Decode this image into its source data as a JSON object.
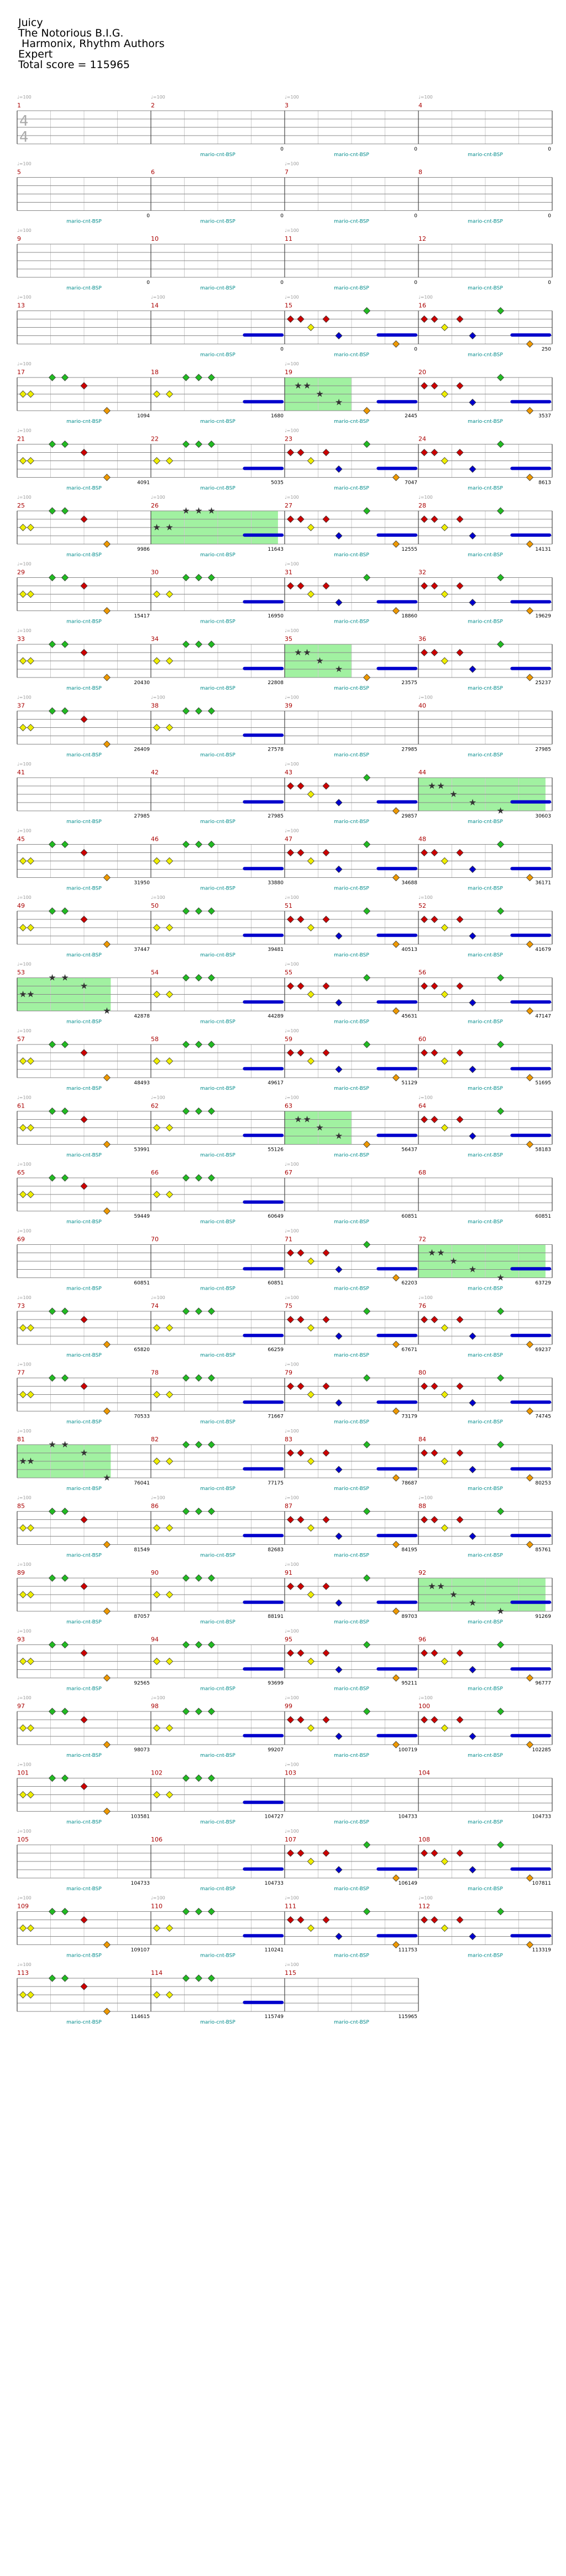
{
  "header": {
    "title": "Juicy",
    "artist": "The Notorious B.I.G.",
    "charter": " Harmonix, Rhythm Authors",
    "difficulty": "Expert",
    "total_score": "Total score = 115965"
  },
  "time_signature": [
    "4",
    "4"
  ],
  "multiplier_label": "mario-cnt-BSP",
  "tempo_marker": "♩=100",
  "colors": {
    "staff_line": "#888888",
    "grid_line": "#cccccc",
    "measure_number": "#aa0000",
    "multiplier_text": "#008b8b",
    "star_power_fill": "#90ee90",
    "sustain": "#0000cc",
    "green_gem": "#22bb22",
    "red_gem": "#cc0000",
    "yellow_gem": "#eeee00",
    "blue_gem": "#0000cc",
    "orange_gem": "#ee9900"
  },
  "gem_colors": [
    "green",
    "red",
    "yellow",
    "blue",
    "orange"
  ],
  "measure_patterns": {
    "empty": {
      "notes": [],
      "sustain": false
    },
    "A": {
      "notes": [
        [
          0.02,
          2
        ],
        [
          0.08,
          2
        ],
        [
          0.25,
          0
        ],
        [
          0.35,
          0
        ],
        [
          0.5,
          1
        ],
        [
          0.68,
          4
        ]
      ],
      "sustain": false
    },
    "B": {
      "notes": [
        [
          0.02,
          2
        ],
        [
          0.12,
          2
        ],
        [
          0.25,
          0
        ],
        [
          0.35,
          0
        ],
        [
          0.45,
          0
        ]
      ],
      "sustain": true
    },
    "C": {
      "notes": [
        [
          0.02,
          1
        ],
        [
          0.1,
          1
        ],
        [
          0.18,
          2
        ],
        [
          0.3,
          1
        ],
        [
          0.4,
          3
        ],
        [
          0.62,
          0
        ],
        [
          0.85,
          4
        ]
      ],
      "sustain": true
    },
    "D": {
      "notes": [
        [
          0.02,
          1
        ],
        [
          0.1,
          1
        ],
        [
          0.18,
          2
        ],
        [
          0.3,
          1
        ],
        [
          0.4,
          3
        ],
        [
          0.62,
          0
        ],
        [
          0.85,
          4
        ]
      ],
      "sustain": false
    },
    "S": {
      "notes": [
        [
          0.08,
          1
        ],
        [
          0.15,
          1
        ],
        [
          0.25,
          2
        ],
        [
          0.4,
          3
        ],
        [
          0.62,
          4
        ]
      ],
      "sustain": true
    },
    "Z": {
      "notes": [],
      "sustain": true
    }
  },
  "systems": [
    {
      "tempo": true,
      "measures": [
        {
          "n": 1,
          "p": "empty",
          "sc": "",
          "mp": false
        },
        {
          "n": 2,
          "p": "empty",
          "sc": "0",
          "mp": true
        },
        {
          "n": 3,
          "p": "empty",
          "sc": "0",
          "mp": true
        },
        {
          "n": 4,
          "p": "empty",
          "sc": "0",
          "mp": true
        }
      ]
    },
    {
      "tempo": true,
      "measures": [
        {
          "n": 5,
          "p": "empty",
          "sc": "0",
          "mp": true
        },
        {
          "n": 6,
          "p": "empty",
          "sc": "0",
          "mp": true
        },
        {
          "n": 7,
          "p": "empty",
          "sc": "0",
          "mp": true
        },
        {
          "n": 8,
          "p": "empty",
          "sc": "0",
          "mp": true
        }
      ]
    },
    {
      "tempo": true,
      "measures": [
        {
          "n": 9,
          "p": "empty",
          "sc": "0",
          "mp": true
        },
        {
          "n": 10,
          "p": "empty",
          "sc": "0",
          "mp": true
        },
        {
          "n": 11,
          "p": "empty",
          "sc": "0",
          "mp": true
        },
        {
          "n": 12,
          "p": "empty",
          "sc": "0",
          "mp": true
        }
      ]
    },
    {
      "tempo": true,
      "measures": [
        {
          "n": 13,
          "p": "empty",
          "sc": "",
          "mp": false
        },
        {
          "n": 14,
          "p": "Z",
          "sc": "0",
          "mp": true
        },
        {
          "n": 15,
          "p": "C",
          "sc": "0",
          "mp": true
        },
        {
          "n": 16,
          "p": "C",
          "sc": "250",
          "mp": true
        }
      ]
    },
    {
      "tempo": true,
      "measures": [
        {
          "n": 17,
          "p": "A",
          "sc": "1094",
          "mp": true
        },
        {
          "n": 18,
          "p": "B",
          "sc": "1680",
          "mp": true
        },
        {
          "n": 19,
          "p": "S",
          "sc": "2445",
          "mp": true,
          "sp": [
            0,
            0.5
          ]
        },
        {
          "n": 20,
          "p": "C",
          "sc": "3537",
          "mp": true
        }
      ]
    },
    {
      "tempo": true,
      "measures": [
        {
          "n": 21,
          "p": "A",
          "sc": "4091",
          "mp": true
        },
        {
          "n": 22,
          "p": "B",
          "sc": "5035",
          "mp": true
        },
        {
          "n": 23,
          "p": "C",
          "sc": "7047",
          "mp": true
        },
        {
          "n": 24,
          "p": "C",
          "sc": "8613",
          "mp": true
        }
      ]
    },
    {
      "tempo": true,
      "measures": [
        {
          "n": 25,
          "p": "A",
          "sc": "9986",
          "mp": true
        },
        {
          "n": 26,
          "p": "B",
          "sc": "11643",
          "mp": true,
          "sp": [
            0,
            0.95
          ]
        },
        {
          "n": 27,
          "p": "C",
          "sc": "12555",
          "mp": true
        },
        {
          "n": 28,
          "p": "C",
          "sc": "14131",
          "mp": true
        }
      ]
    },
    {
      "tempo": true,
      "measures": [
        {
          "n": 29,
          "p": "A",
          "sc": "15417",
          "mp": true
        },
        {
          "n": 30,
          "p": "B",
          "sc": "16950",
          "mp": true
        },
        {
          "n": 31,
          "p": "C",
          "sc": "18860",
          "mp": true
        },
        {
          "n": 32,
          "p": "C",
          "sc": "19629",
          "mp": true
        }
      ]
    },
    {
      "tempo": true,
      "measures": [
        {
          "n": 33,
          "p": "A",
          "sc": "20430",
          "mp": true
        },
        {
          "n": 34,
          "p": "B",
          "sc": "22808",
          "mp": true
        },
        {
          "n": 35,
          "p": "S",
          "sc": "23575",
          "mp": true,
          "sp": [
            0,
            0.5
          ]
        },
        {
          "n": 36,
          "p": "C",
          "sc": "25237",
          "mp": true
        }
      ]
    },
    {
      "tempo": true,
      "measures": [
        {
          "n": 37,
          "p": "A",
          "sc": "26409",
          "mp": true
        },
        {
          "n": 38,
          "p": "B",
          "sc": "27578",
          "mp": true
        },
        {
          "n": 39,
          "p": "empty",
          "sc": "27985",
          "mp": true
        },
        {
          "n": 40,
          "p": "empty",
          "sc": "27985",
          "mp": true
        }
      ]
    },
    {
      "tempo": true,
      "measures": [
        {
          "n": 41,
          "p": "empty",
          "sc": "27985",
          "mp": true
        },
        {
          "n": 42,
          "p": "Z",
          "sc": "27985",
          "mp": true
        },
        {
          "n": 43,
          "p": "C",
          "sc": "29857",
          "mp": true
        },
        {
          "n": 44,
          "p": "S",
          "sc": "30603",
          "mp": true,
          "sp": [
            0,
            0.95
          ]
        }
      ]
    },
    {
      "tempo": true,
      "measures": [
        {
          "n": 45,
          "p": "A",
          "sc": "31950",
          "mp": true
        },
        {
          "n": 46,
          "p": "B",
          "sc": "33880",
          "mp": true
        },
        {
          "n": 47,
          "p": "C",
          "sc": "34688",
          "mp": true
        },
        {
          "n": 48,
          "p": "C",
          "sc": "36171",
          "mp": true
        }
      ]
    },
    {
      "tempo": true,
      "measures": [
        {
          "n": 49,
          "p": "A",
          "sc": "37447",
          "mp": true
        },
        {
          "n": 50,
          "p": "B",
          "sc": "39481",
          "mp": true
        },
        {
          "n": 51,
          "p": "C",
          "sc": "40513",
          "mp": true
        },
        {
          "n": 52,
          "p": "C",
          "sc": "41679",
          "mp": true
        }
      ]
    },
    {
      "tempo": true,
      "measures": [
        {
          "n": 53,
          "p": "A",
          "sc": "42878",
          "mp": true,
          "sp": [
            0,
            0.7
          ]
        },
        {
          "n": 54,
          "p": "B",
          "sc": "44289",
          "mp": true
        },
        {
          "n": 55,
          "p": "C",
          "sc": "45631",
          "mp": true
        },
        {
          "n": 56,
          "p": "C",
          "sc": "47147",
          "mp": true
        }
      ]
    },
    {
      "tempo": true,
      "measures": [
        {
          "n": 57,
          "p": "A",
          "sc": "48493",
          "mp": true
        },
        {
          "n": 58,
          "p": "B",
          "sc": "49617",
          "mp": true
        },
        {
          "n": 59,
          "p": "C",
          "sc": "51129",
          "mp": true
        },
        {
          "n": 60,
          "p": "C",
          "sc": "51695",
          "mp": true
        }
      ]
    },
    {
      "tempo": true,
      "measures": [
        {
          "n": 61,
          "p": "A",
          "sc": "53991",
          "mp": true
        },
        {
          "n": 62,
          "p": "B",
          "sc": "55126",
          "mp": true
        },
        {
          "n": 63,
          "p": "S",
          "sc": "56437",
          "mp": true,
          "sp": [
            0,
            0.5
          ]
        },
        {
          "n": 64,
          "p": "C",
          "sc": "58183",
          "mp": true
        }
      ]
    },
    {
      "tempo": true,
      "measures": [
        {
          "n": 65,
          "p": "A",
          "sc": "59449",
          "mp": true
        },
        {
          "n": 66,
          "p": "B",
          "sc": "60649",
          "mp": true
        },
        {
          "n": 67,
          "p": "empty",
          "sc": "60851",
          "mp": true
        },
        {
          "n": 68,
          "p": "empty",
          "sc": "60851",
          "mp": true
        }
      ]
    },
    {
      "tempo": true,
      "measures": [
        {
          "n": 69,
          "p": "empty",
          "sc": "60851",
          "mp": true
        },
        {
          "n": 70,
          "p": "Z",
          "sc": "60851",
          "mp": true
        },
        {
          "n": 71,
          "p": "C",
          "sc": "62203",
          "mp": true
        },
        {
          "n": 72,
          "p": "S",
          "sc": "63729",
          "mp": true,
          "sp": [
            0,
            0.95
          ]
        }
      ]
    },
    {
      "tempo": true,
      "measures": [
        {
          "n": 73,
          "p": "A",
          "sc": "65820",
          "mp": true
        },
        {
          "n": 74,
          "p": "B",
          "sc": "66259",
          "mp": true
        },
        {
          "n": 75,
          "p": "C",
          "sc": "67671",
          "mp": true
        },
        {
          "n": 76,
          "p": "C",
          "sc": "69237",
          "mp": true
        }
      ]
    },
    {
      "tempo": true,
      "measures": [
        {
          "n": 77,
          "p": "A",
          "sc": "70533",
          "mp": true
        },
        {
          "n": 78,
          "p": "B",
          "sc": "71667",
          "mp": true
        },
        {
          "n": 79,
          "p": "C",
          "sc": "73179",
          "mp": true
        },
        {
          "n": 80,
          "p": "C",
          "sc": "74745",
          "mp": true
        }
      ]
    },
    {
      "tempo": true,
      "measures": [
        {
          "n": 81,
          "p": "A",
          "sc": "76041",
          "mp": true,
          "sp": [
            0,
            0.7
          ]
        },
        {
          "n": 82,
          "p": "B",
          "sc": "77175",
          "mp": true
        },
        {
          "n": 83,
          "p": "C",
          "sc": "78687",
          "mp": true
        },
        {
          "n": 84,
          "p": "C",
          "sc": "80253",
          "mp": true
        }
      ]
    },
    {
      "tempo": true,
      "measures": [
        {
          "n": 85,
          "p": "A",
          "sc": "81549",
          "mp": true
        },
        {
          "n": 86,
          "p": "B",
          "sc": "82683",
          "mp": true
        },
        {
          "n": 87,
          "p": "C",
          "sc": "84195",
          "mp": true
        },
        {
          "n": 88,
          "p": "C",
          "sc": "85761",
          "mp": true
        }
      ]
    },
    {
      "tempo": true,
      "measures": [
        {
          "n": 89,
          "p": "A",
          "sc": "87057",
          "mp": true
        },
        {
          "n": 90,
          "p": "B",
          "sc": "88191",
          "mp": true
        },
        {
          "n": 91,
          "p": "C",
          "sc": "89703",
          "mp": true
        },
        {
          "n": 92,
          "p": "S",
          "sc": "91269",
          "mp": true,
          "sp": [
            0,
            0.95
          ]
        }
      ]
    },
    {
      "tempo": true,
      "measures": [
        {
          "n": 93,
          "p": "A",
          "sc": "92565",
          "mp": true
        },
        {
          "n": 94,
          "p": "B",
          "sc": "93699",
          "mp": true
        },
        {
          "n": 95,
          "p": "C",
          "sc": "95211",
          "mp": true
        },
        {
          "n": 96,
          "p": "C",
          "sc": "96777",
          "mp": true
        }
      ]
    },
    {
      "tempo": true,
      "measures": [
        {
          "n": 97,
          "p": "A",
          "sc": "98073",
          "mp": true
        },
        {
          "n": 98,
          "p": "B",
          "sc": "99207",
          "mp": true
        },
        {
          "n": 99,
          "p": "C",
          "sc": "100719",
          "mp": true
        },
        {
          "n": 100,
          "p": "C",
          "sc": "102285",
          "mp": true
        }
      ]
    },
    {
      "tempo": true,
      "measures": [
        {
          "n": 101,
          "p": "A",
          "sc": "103581",
          "mp": true
        },
        {
          "n": 102,
          "p": "B",
          "sc": "104727",
          "mp": true
        },
        {
          "n": 103,
          "p": "empty",
          "sc": "104733",
          "mp": true
        },
        {
          "n": 104,
          "p": "empty",
          "sc": "104733",
          "mp": true
        }
      ]
    },
    {
      "tempo": true,
      "measures": [
        {
          "n": 105,
          "p": "empty",
          "sc": "104733",
          "mp": true
        },
        {
          "n": 106,
          "p": "Z",
          "sc": "104733",
          "mp": true
        },
        {
          "n": 107,
          "p": "C",
          "sc": "106149",
          "mp": true
        },
        {
          "n": 108,
          "p": "C",
          "sc": "107811",
          "mp": true
        }
      ]
    },
    {
      "tempo": true,
      "measures": [
        {
          "n": 109,
          "p": "A",
          "sc": "109107",
          "mp": true
        },
        {
          "n": 110,
          "p": "B",
          "sc": "110241",
          "mp": true
        },
        {
          "n": 111,
          "p": "C",
          "sc": "111753",
          "mp": true
        },
        {
          "n": 112,
          "p": "C",
          "sc": "113319",
          "mp": true
        }
      ]
    },
    {
      "tempo": true,
      "measures": [
        {
          "n": 113,
          "p": "A",
          "sc": "114615",
          "mp": true
        },
        {
          "n": 114,
          "p": "B",
          "sc": "115749",
          "mp": true
        },
        {
          "n": 115,
          "p": "empty",
          "sc": "115965",
          "mp": true
        }
      ]
    }
  ]
}
